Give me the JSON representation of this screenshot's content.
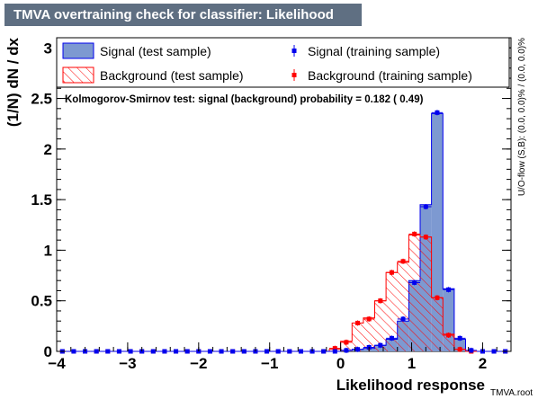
{
  "header": {
    "title": "TMVA overtraining check for classifier: Likelihood"
  },
  "footer": {
    "source_label": "TMVA.root"
  },
  "colors": {
    "signal_fill": "#7d99d1",
    "signal_line": "#0000ee",
    "background_line": "#ff0000",
    "title_bg": "#5f6f82"
  },
  "chart_data": {
    "type": "histogram",
    "xlabel": "Likelihood response",
    "ylabel": "(1/N) dN / dx",
    "right_label": "U/O-flow (S,B): (0.0, 0.0)% / (0.0, 0.0)%",
    "annotation": "Kolmogorov-Smirnov test: signal (background) probability = 0.182 ( 0.49)",
    "xlim": [
      -4.0,
      2.4
    ],
    "ylim": [
      0,
      3.1
    ],
    "x_ticks": [
      -4,
      -3,
      -2,
      -1,
      0,
      1,
      2
    ],
    "x_tick_labels": [
      "−4",
      "−3",
      "−2",
      "−1",
      "0",
      "1",
      "2"
    ],
    "y_ticks": [
      0,
      0.5,
      1,
      1.5,
      2,
      2.5,
      3
    ],
    "y_tick_labels": [
      "0",
      "0.5",
      "1",
      "1.5",
      "2",
      "2.5",
      "3"
    ],
    "bin_edges_start": -4.0,
    "bin_width": 0.16,
    "legend": {
      "signal_test": "Signal (test sample)",
      "signal_train": "Signal (training sample)",
      "background_test": "Background (test sample)",
      "background_train": "Background (training sample)"
    },
    "series": [
      {
        "name": "Signal (test sample)",
        "kind": "filled",
        "values": [
          0,
          0,
          0,
          0,
          0,
          0,
          0,
          0,
          0,
          0,
          0,
          0,
          0,
          0,
          0,
          0,
          0,
          0,
          0,
          0,
          0,
          0,
          0,
          0,
          0,
          0.01,
          0.02,
          0.03,
          0.06,
          0.12,
          0.3,
          0.7,
          1.45,
          2.35,
          0.62,
          0.12,
          0,
          0,
          0,
          0
        ]
      },
      {
        "name": "Background (test sample)",
        "kind": "hatched",
        "values": [
          0,
          0,
          0,
          0,
          0,
          0,
          0,
          0,
          0,
          0,
          0,
          0,
          0,
          0,
          0,
          0,
          0,
          0,
          0,
          0,
          0,
          0,
          0,
          0,
          0.02,
          0.1,
          0.28,
          0.33,
          0.5,
          0.78,
          0.88,
          1.15,
          1.13,
          0.53,
          0.17,
          0.02,
          0,
          0,
          0,
          0
        ]
      },
      {
        "name": "Signal (training sample)",
        "kind": "points",
        "values": [
          0,
          0,
          0,
          0,
          0,
          0,
          0,
          0,
          0,
          0,
          0,
          0,
          0,
          0,
          0,
          0,
          0,
          0,
          0,
          0,
          0,
          0,
          0,
          0,
          0,
          0.01,
          0.02,
          0.04,
          0.06,
          0.13,
          0.32,
          0.68,
          1.43,
          2.36,
          0.61,
          0.13,
          0.01,
          0,
          0,
          0
        ]
      },
      {
        "name": "Background (training sample)",
        "kind": "points",
        "values": [
          0,
          0,
          0,
          0,
          0,
          0,
          0,
          0,
          0,
          0,
          0,
          0,
          0,
          0,
          0,
          0,
          0,
          0,
          0,
          0,
          0,
          0,
          0,
          0,
          0.03,
          0.09,
          0.28,
          0.32,
          0.5,
          0.78,
          0.89,
          1.16,
          1.13,
          0.53,
          0.16,
          0.02,
          0,
          0,
          0,
          0
        ]
      }
    ]
  }
}
